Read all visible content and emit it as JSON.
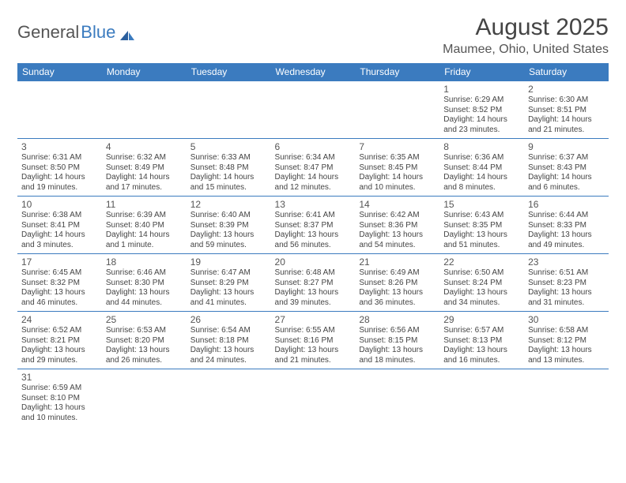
{
  "logo": {
    "part1": "General",
    "part2": "Blue"
  },
  "title": "August 2025",
  "location": "Maumee, Ohio, United States",
  "headerColor": "#3b7bbf",
  "dayHeaders": [
    "Sunday",
    "Monday",
    "Tuesday",
    "Wednesday",
    "Thursday",
    "Friday",
    "Saturday"
  ],
  "weeks": [
    [
      null,
      null,
      null,
      null,
      null,
      {
        "n": "1",
        "sr": "6:29 AM",
        "ss": "8:52 PM",
        "dl": "14 hours and 23 minutes."
      },
      {
        "n": "2",
        "sr": "6:30 AM",
        "ss": "8:51 PM",
        "dl": "14 hours and 21 minutes."
      }
    ],
    [
      {
        "n": "3",
        "sr": "6:31 AM",
        "ss": "8:50 PM",
        "dl": "14 hours and 19 minutes."
      },
      {
        "n": "4",
        "sr": "6:32 AM",
        "ss": "8:49 PM",
        "dl": "14 hours and 17 minutes."
      },
      {
        "n": "5",
        "sr": "6:33 AM",
        "ss": "8:48 PM",
        "dl": "14 hours and 15 minutes."
      },
      {
        "n": "6",
        "sr": "6:34 AM",
        "ss": "8:47 PM",
        "dl": "14 hours and 12 minutes."
      },
      {
        "n": "7",
        "sr": "6:35 AM",
        "ss": "8:45 PM",
        "dl": "14 hours and 10 minutes."
      },
      {
        "n": "8",
        "sr": "6:36 AM",
        "ss": "8:44 PM",
        "dl": "14 hours and 8 minutes."
      },
      {
        "n": "9",
        "sr": "6:37 AM",
        "ss": "8:43 PM",
        "dl": "14 hours and 6 minutes."
      }
    ],
    [
      {
        "n": "10",
        "sr": "6:38 AM",
        "ss": "8:41 PM",
        "dl": "14 hours and 3 minutes."
      },
      {
        "n": "11",
        "sr": "6:39 AM",
        "ss": "8:40 PM",
        "dl": "14 hours and 1 minute."
      },
      {
        "n": "12",
        "sr": "6:40 AM",
        "ss": "8:39 PM",
        "dl": "13 hours and 59 minutes."
      },
      {
        "n": "13",
        "sr": "6:41 AM",
        "ss": "8:37 PM",
        "dl": "13 hours and 56 minutes."
      },
      {
        "n": "14",
        "sr": "6:42 AM",
        "ss": "8:36 PM",
        "dl": "13 hours and 54 minutes."
      },
      {
        "n": "15",
        "sr": "6:43 AM",
        "ss": "8:35 PM",
        "dl": "13 hours and 51 minutes."
      },
      {
        "n": "16",
        "sr": "6:44 AM",
        "ss": "8:33 PM",
        "dl": "13 hours and 49 minutes."
      }
    ],
    [
      {
        "n": "17",
        "sr": "6:45 AM",
        "ss": "8:32 PM",
        "dl": "13 hours and 46 minutes."
      },
      {
        "n": "18",
        "sr": "6:46 AM",
        "ss": "8:30 PM",
        "dl": "13 hours and 44 minutes."
      },
      {
        "n": "19",
        "sr": "6:47 AM",
        "ss": "8:29 PM",
        "dl": "13 hours and 41 minutes."
      },
      {
        "n": "20",
        "sr": "6:48 AM",
        "ss": "8:27 PM",
        "dl": "13 hours and 39 minutes."
      },
      {
        "n": "21",
        "sr": "6:49 AM",
        "ss": "8:26 PM",
        "dl": "13 hours and 36 minutes."
      },
      {
        "n": "22",
        "sr": "6:50 AM",
        "ss": "8:24 PM",
        "dl": "13 hours and 34 minutes."
      },
      {
        "n": "23",
        "sr": "6:51 AM",
        "ss": "8:23 PM",
        "dl": "13 hours and 31 minutes."
      }
    ],
    [
      {
        "n": "24",
        "sr": "6:52 AM",
        "ss": "8:21 PM",
        "dl": "13 hours and 29 minutes."
      },
      {
        "n": "25",
        "sr": "6:53 AM",
        "ss": "8:20 PM",
        "dl": "13 hours and 26 minutes."
      },
      {
        "n": "26",
        "sr": "6:54 AM",
        "ss": "8:18 PM",
        "dl": "13 hours and 24 minutes."
      },
      {
        "n": "27",
        "sr": "6:55 AM",
        "ss": "8:16 PM",
        "dl": "13 hours and 21 minutes."
      },
      {
        "n": "28",
        "sr": "6:56 AM",
        "ss": "8:15 PM",
        "dl": "13 hours and 18 minutes."
      },
      {
        "n": "29",
        "sr": "6:57 AM",
        "ss": "8:13 PM",
        "dl": "13 hours and 16 minutes."
      },
      {
        "n": "30",
        "sr": "6:58 AM",
        "ss": "8:12 PM",
        "dl": "13 hours and 13 minutes."
      }
    ],
    [
      {
        "n": "31",
        "sr": "6:59 AM",
        "ss": "8:10 PM",
        "dl": "13 hours and 10 minutes."
      },
      null,
      null,
      null,
      null,
      null,
      null
    ]
  ],
  "labels": {
    "sunrise": "Sunrise:",
    "sunset": "Sunset:",
    "daylight": "Daylight:"
  }
}
